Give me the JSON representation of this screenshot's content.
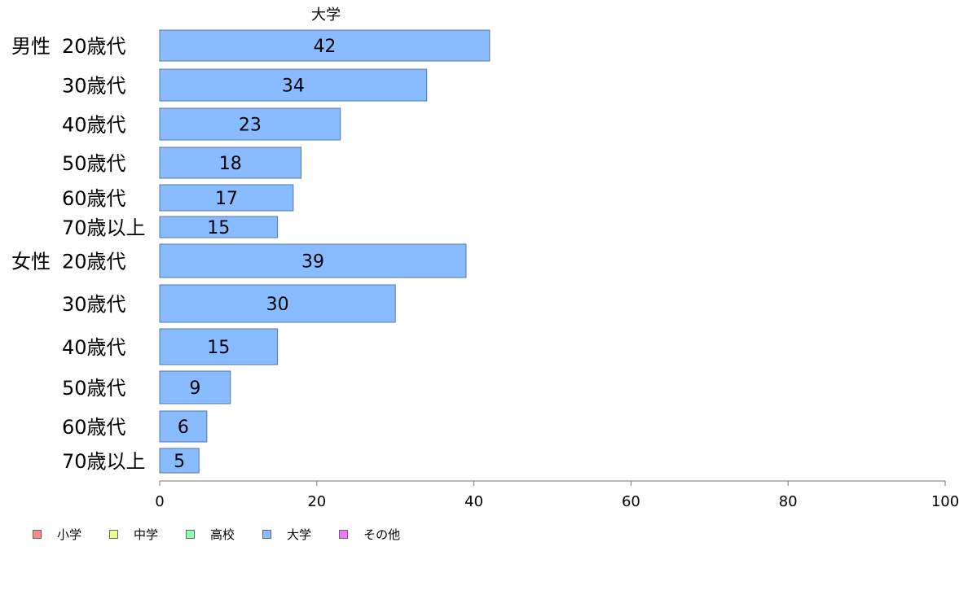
{
  "chart_data": {
    "type": "bar",
    "orientation": "horizontal",
    "title": "大学",
    "groups": [
      {
        "name": "男性",
        "categories": [
          "20歳代",
          "30歳代",
          "40歳代",
          "50歳代",
          "60歳代",
          "70歳以上"
        ],
        "values": [
          42,
          34,
          23,
          18,
          17,
          15
        ]
      },
      {
        "name": "女性",
        "categories": [
          "20歳代",
          "30歳代",
          "40歳代",
          "50歳代",
          "60歳代",
          "70歳以上"
        ],
        "values": [
          39,
          30,
          15,
          9,
          6,
          5
        ]
      }
    ],
    "xlim": [
      0,
      100
    ],
    "x_ticks": [
      "0",
      "20",
      "40",
      "60",
      "80",
      "100"
    ],
    "grid": false,
    "bar_color": "#88bbff",
    "bar_border_color": "#5577aa",
    "legend_position": "bottom-left",
    "legend": [
      {
        "label": "小学",
        "color": "#ff8888"
      },
      {
        "label": "中学",
        "color": "#eeff88"
      },
      {
        "label": "高校",
        "color": "#88ffbb"
      },
      {
        "label": "大学",
        "color": "#88bbff"
      },
      {
        "label": "その他",
        "color": "#ee77ff"
      }
    ]
  }
}
